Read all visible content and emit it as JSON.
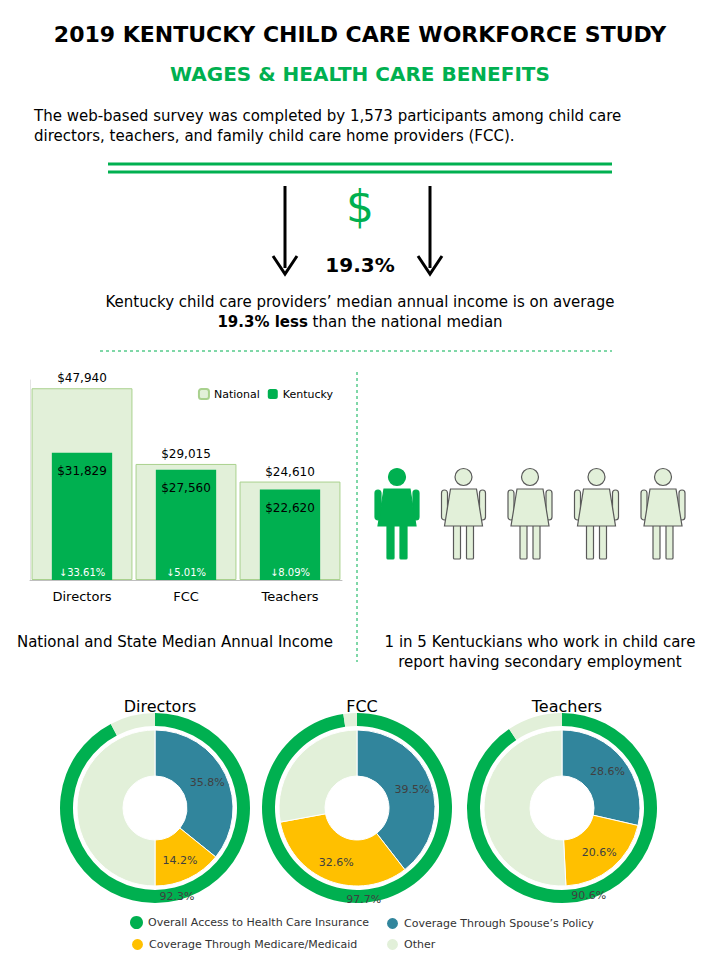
{
  "title": "2019 KENTUCKY CHILD CARE WORKFORCE STUDY",
  "subtitle": "WAGES & HEALTH CARE BENEFITS",
  "intro": "The web-based survey was completed by 1,573 participants among child care directors, teachers, and family child care home providers (FCC).",
  "highlight": {
    "symbol": "$",
    "label": "19.3%",
    "text": "Kentucky child care providers’ median annual income is on average",
    "emphasis": "19.3% less",
    "text_after": " than the national median"
  },
  "secondary_employment": {
    "filled": 1,
    "total": 5,
    "text": "1 in 5 Kentuckians who work in child care report having secondary employment"
  },
  "chart_data": [
    {
      "type": "bar",
      "title": "National and State Median Annual Income",
      "categories": [
        "Directors",
        "FCC",
        "Teachers"
      ],
      "series": [
        {
          "name": "National",
          "color": "#e2f0d9",
          "values": [
            47940,
            29015,
            24610
          ],
          "value_labels": [
            "$47,940",
            "$29,015",
            "$24,610"
          ]
        },
        {
          "name": "Kentucky",
          "color": "#00b050",
          "values": [
            31829,
            27560,
            22620
          ],
          "value_labels": [
            "$31,829",
            "$27,560",
            "$22,620"
          ]
        }
      ],
      "annotations": [
        "↓33.61%",
        "↓5.01%",
        "↓8.09%"
      ],
      "ylim": [
        0,
        50000
      ],
      "grid": false,
      "legend": "upper right",
      "data_labels": true,
      "tick_labels": "x"
    },
    {
      "type": "donut",
      "title": "Directors",
      "data_labels": true,
      "legend": "bottom",
      "series": [
        {
          "categories": [
            "Overall Access to Health Care Insurance",
            null
          ],
          "values": [
            92.3,
            7.7
          ],
          "colors": [
            "#00b050",
            "#e2f0d9"
          ],
          "value_labels": [
            "92.3%",
            null
          ]
        },
        {
          "categories": [
            "Coverage Through Spouse’s Policy",
            "Coverage Through Medicare/Medicaid",
            "Other"
          ],
          "values": [
            35.8,
            14.2,
            50.0
          ],
          "colors": [
            "#31859c",
            "#ffc000",
            "#e2f0d9"
          ],
          "value_labels": [
            "35.8%",
            "14.2%",
            null
          ]
        }
      ]
    },
    {
      "type": "donut",
      "title": "FCC",
      "data_labels": true,
      "legend": "bottom",
      "series": [
        {
          "categories": [
            "Overall Access to Health Care Insurance",
            null
          ],
          "values": [
            97.7,
            2.3
          ],
          "colors": [
            "#00b050",
            "#e2f0d9"
          ],
          "value_labels": [
            "97.7%",
            null
          ]
        },
        {
          "categories": [
            "Coverage Through Spouse’s Policy",
            "Coverage Through Medicare/Medicaid",
            "Other"
          ],
          "values": [
            39.5,
            32.6,
            27.9
          ],
          "colors": [
            "#31859c",
            "#ffc000",
            "#e2f0d9"
          ],
          "value_labels": [
            "39.5%",
            "32.6%",
            null
          ]
        }
      ]
    },
    {
      "type": "donut",
      "title": "Teachers",
      "data_labels": true,
      "legend": "bottom",
      "series": [
        {
          "categories": [
            "Overall Access to Health Care Insurance",
            null
          ],
          "values": [
            90.6,
            9.4
          ],
          "colors": [
            "#00b050",
            "#e2f0d9"
          ],
          "value_labels": [
            "90.6%",
            null
          ]
        },
        {
          "categories": [
            "Coverage Through Spouse’s Policy",
            "Coverage Through Medicare/Medicaid",
            "Other"
          ],
          "values": [
            28.6,
            20.6,
            50.8
          ],
          "colors": [
            "#31859c",
            "#ffc000",
            "#e2f0d9"
          ],
          "value_labels": [
            "28.6%",
            "20.6%",
            null
          ]
        }
      ]
    }
  ]
}
